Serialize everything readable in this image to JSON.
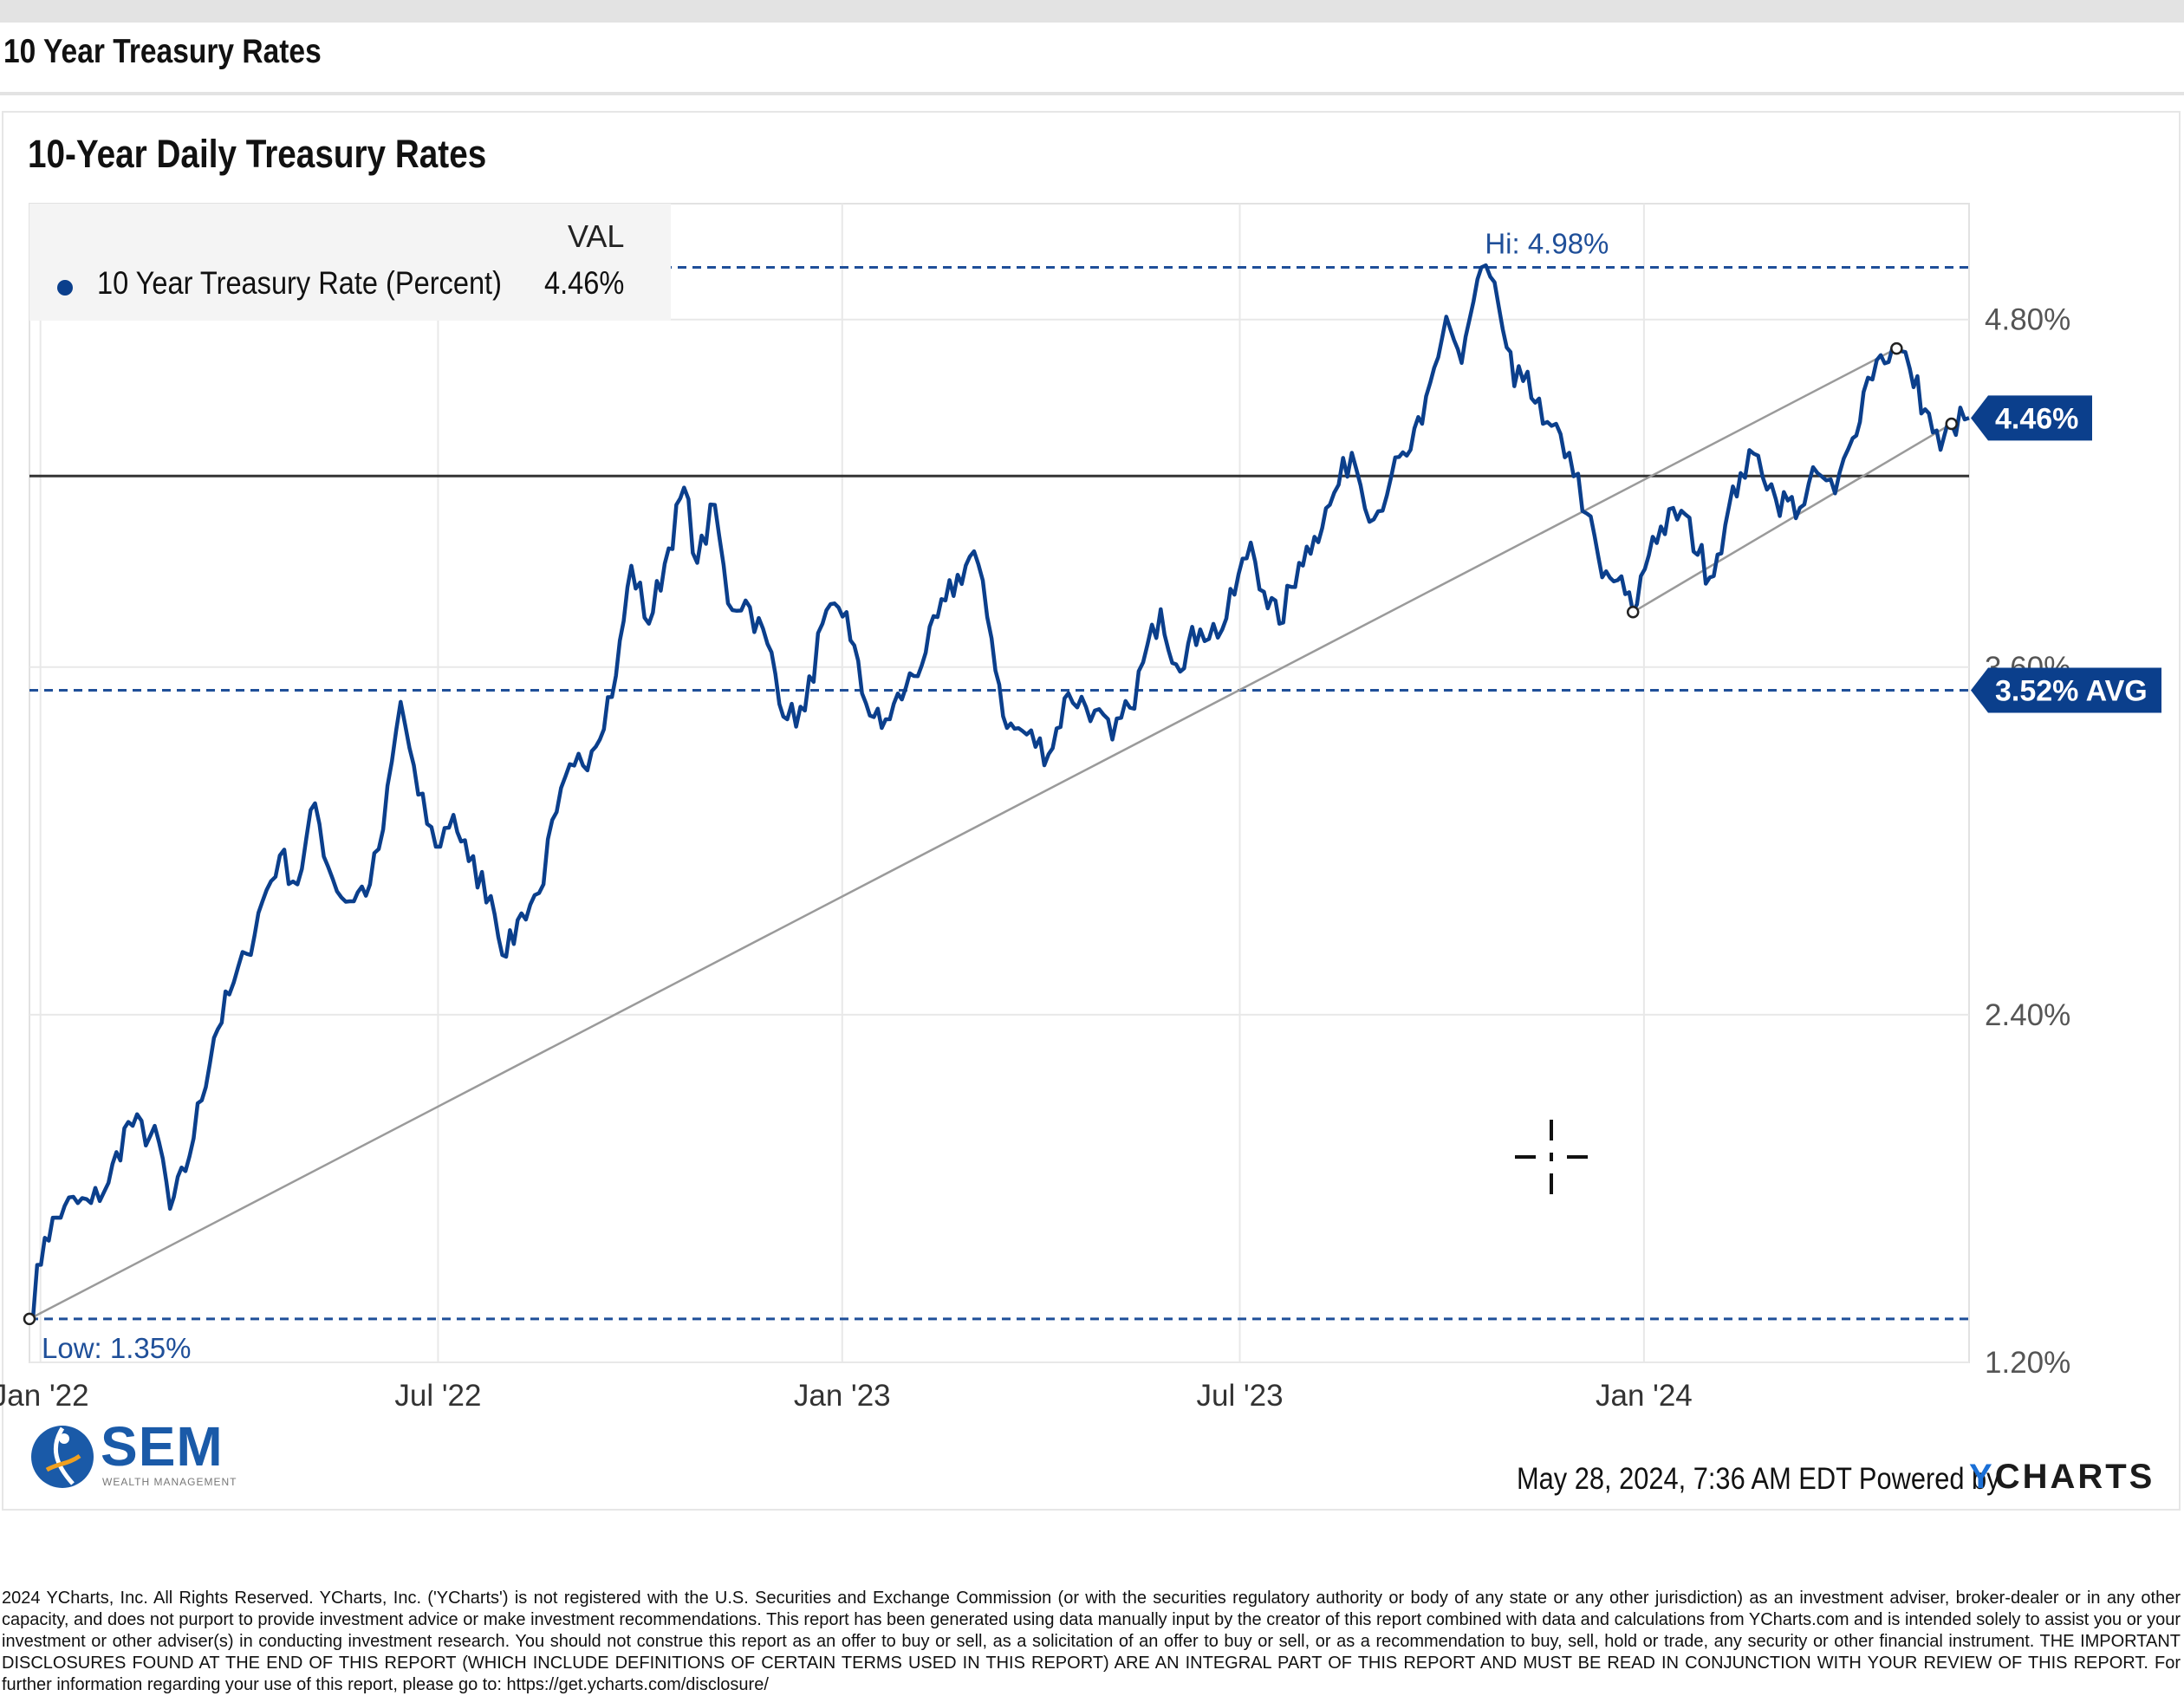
{
  "page_title": "10 Year Treasury Rates",
  "chart_data": {
    "type": "line",
    "title": "10-Year Daily Treasury Rates",
    "legend": {
      "header": "VAL",
      "entries": [
        {
          "name": "10 Year Treasury Rate (Percent)",
          "value": "4.46%"
        }
      ]
    },
    "x_ticks": [
      "Jan '22",
      "Jul '22",
      "Jan '23",
      "Jul '23",
      "Jan '24"
    ],
    "y_ticks": [
      "1.20%",
      "2.40%",
      "3.60%",
      "4.80%"
    ],
    "ylim": [
      1.2,
      5.2
    ],
    "xlim": [
      "2021-12-27",
      "2024-05-28"
    ],
    "grid": true,
    "series": [
      {
        "name": "10 Year Treasury Rate (Percent)",
        "color": "#0b3f8c",
        "x": [
          "2021-12-27",
          "2022-01-03",
          "2022-01-12",
          "2022-01-24",
          "2022-02-01",
          "2022-02-10",
          "2022-02-24",
          "2022-03-01",
          "2022-03-08",
          "2022-03-21",
          "2022-03-28",
          "2022-04-05",
          "2022-04-12",
          "2022-04-20",
          "2022-04-28",
          "2022-05-06",
          "2022-05-12",
          "2022-05-20",
          "2022-05-31",
          "2022-06-06",
          "2022-06-14",
          "2022-06-22",
          "2022-06-30",
          "2022-07-08",
          "2022-07-15",
          "2022-07-25",
          "2022-08-01",
          "2022-08-08",
          "2022-08-16",
          "2022-08-24",
          "2022-09-01",
          "2022-09-09",
          "2022-09-20",
          "2022-09-27",
          "2022-10-05",
          "2022-10-14",
          "2022-10-21",
          "2022-10-27",
          "2022-11-04",
          "2022-11-10",
          "2022-11-18",
          "2022-11-28",
          "2022-12-07",
          "2022-12-15",
          "2022-12-23",
          "2023-01-03",
          "2023-01-10",
          "2023-01-19",
          "2023-01-30",
          "2023-02-08",
          "2023-02-17",
          "2023-03-02",
          "2023-03-10",
          "2023-03-17",
          "2023-03-24",
          "2023-04-05",
          "2023-04-14",
          "2023-04-26",
          "2023-05-04",
          "2023-05-12",
          "2023-05-26",
          "2023-06-02",
          "2023-06-13",
          "2023-06-23",
          "2023-07-06",
          "2023-07-12",
          "2023-07-19",
          "2023-07-28",
          "2023-08-04",
          "2023-08-11",
          "2023-08-21",
          "2023-08-31",
          "2023-09-08",
          "2023-09-15",
          "2023-09-22",
          "2023-10-03",
          "2023-10-10",
          "2023-10-19",
          "2023-10-27",
          "2023-11-03",
          "2023-11-09",
          "2023-11-16",
          "2023-11-28",
          "2023-12-06",
          "2023-12-13",
          "2023-12-20",
          "2023-12-27",
          "2024-01-05",
          "2024-01-18",
          "2024-01-31",
          "2024-02-07",
          "2024-02-14",
          "2024-02-22",
          "2024-03-01",
          "2024-03-12",
          "2024-03-20",
          "2024-03-28",
          "2024-04-05",
          "2024-04-10",
          "2024-04-16",
          "2024-04-25",
          "2024-05-01",
          "2024-05-08",
          "2024-05-15",
          "2024-05-20",
          "2024-05-28"
        ],
        "y": [
          1.35,
          1.63,
          1.74,
          1.75,
          1.82,
          2.03,
          1.96,
          1.73,
          1.86,
          2.32,
          2.47,
          2.61,
          2.79,
          2.95,
          2.85,
          3.13,
          2.91,
          2.79,
          2.85,
          3.04,
          3.48,
          3.16,
          2.98,
          3.09,
          2.93,
          2.81,
          2.6,
          2.75,
          2.82,
          3.1,
          3.26,
          3.31,
          3.57,
          3.95,
          3.75,
          4.01,
          4.22,
          3.96,
          4.16,
          3.82,
          3.83,
          3.68,
          3.42,
          3.45,
          3.75,
          3.79,
          3.51,
          3.39,
          3.53,
          3.65,
          3.83,
          4.0,
          3.7,
          3.39,
          3.38,
          3.3,
          3.51,
          3.45,
          3.35,
          3.46,
          3.8,
          3.61,
          3.73,
          3.73,
          4.03,
          3.86,
          3.75,
          3.96,
          4.05,
          4.16,
          4.34,
          4.11,
          4.26,
          4.33,
          4.44,
          4.81,
          4.65,
          4.98,
          4.84,
          4.57,
          4.62,
          4.44,
          4.34,
          4.13,
          3.91,
          3.9,
          3.79,
          4.05,
          4.14,
          3.91,
          4.09,
          4.27,
          4.33,
          4.18,
          4.15,
          4.27,
          4.2,
          4.39,
          4.55,
          4.66,
          4.7,
          4.63,
          4.49,
          4.35,
          4.44,
          4.46
        ]
      }
    ],
    "reference_lines": {
      "high": {
        "value": 4.98,
        "label": "Hi: 4.98%"
      },
      "low": {
        "value": 1.35,
        "label": "Low: 1.35%"
      },
      "average": {
        "value": 3.52,
        "label": "3.52% AVG"
      },
      "level": {
        "value": 4.26
      },
      "current": {
        "value": 4.46,
        "label": "4.46%"
      }
    },
    "trendlines": [
      {
        "from": [
          "2021-12-27",
          1.35
        ],
        "to": [
          "2024-04-25",
          4.7
        ]
      },
      {
        "from": [
          "2023-12-27",
          3.79
        ],
        "to": [
          "2024-05-20",
          4.44
        ]
      }
    ]
  },
  "branding": {
    "logo_text": "SEM",
    "logo_subtext": "WEALTH MANAGEMENT"
  },
  "footer": {
    "timestamp": "May 28, 2024, 7:36 AM EDT Powered by",
    "provider_y": "Y",
    "provider_rest": "CHARTS"
  },
  "disclaimer": "2024 YCharts, Inc. All Rights Reserved. YCharts, Inc. ('YCharts') is not registered with the U.S. Securities and Exchange Commission (or with the securities regulatory authority or body of any state or any other jurisdiction) as an investment adviser, broker-dealer or in any other capacity, and does not purport to provide investment advice or make investment recommendations. This report has been generated using data manually input by the creator of this report combined with data and calculations from YCharts.com and is intended solely to assist you or your investment or other adviser(s) in conducting investment research. You should not construe this report as an offer to buy or sell, as a solicitation of an offer to buy or sell, or as a recommendation to buy, sell, hold or trade, any security or other financial instrument. THE IMPORTANT DISCLOSURES FOUND AT THE END OF THIS REPORT (WHICH INCLUDE DEFINITIONS OF CERTAIN TERMS USED IN THIS REPORT) ARE AN INTEGRAL PART OF THIS REPORT AND MUST BE READ IN CONJUNCTION WITH YOUR REVIEW OF THIS REPORT. For further information regarding your use of this report, please go to: https://get.ycharts.com/disclosure/"
}
